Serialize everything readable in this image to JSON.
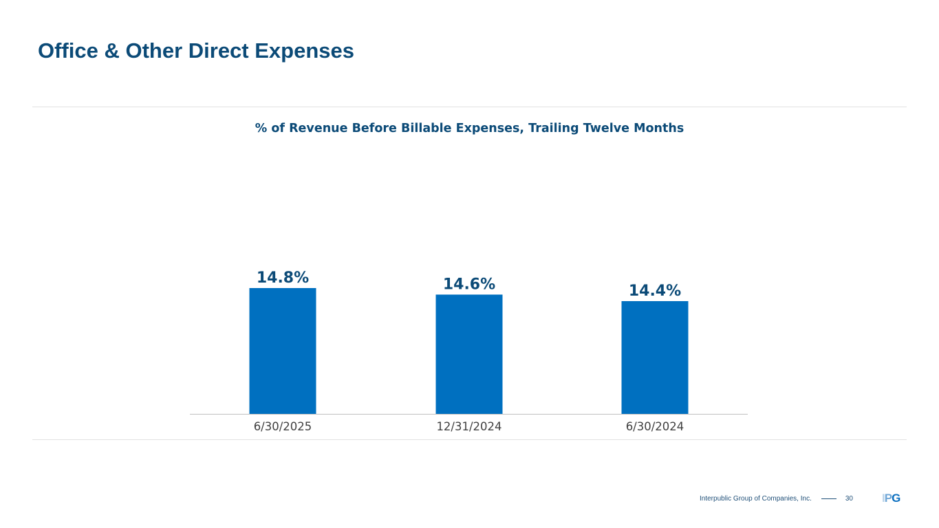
{
  "slide": {
    "title": "Office & Other Direct Expenses"
  },
  "chart_data": {
    "type": "bar",
    "title": "% of Revenue Before Billable Expenses, Trailing Twelve Months",
    "categories": [
      "6/30/2025",
      "12/31/2024",
      "6/30/2024"
    ],
    "values": [
      14.8,
      14.6,
      14.4
    ],
    "data_labels": [
      "14.8%",
      "14.6%",
      "14.4%"
    ],
    "unit": "%",
    "xlabel": "",
    "ylabel": "",
    "grid": false,
    "y_axis_visible": false,
    "bar_color": "#0070c0",
    "label_color": "#0b4a77"
  },
  "footer": {
    "company": "Interpublic Group of Companies, Inc.",
    "page_number": "30"
  },
  "logo": {
    "text_parts": [
      "I",
      "P",
      "G"
    ]
  },
  "colors": {
    "title": "#0b4a77",
    "accent": "#0070c0",
    "divider": "#e1e1e1"
  }
}
